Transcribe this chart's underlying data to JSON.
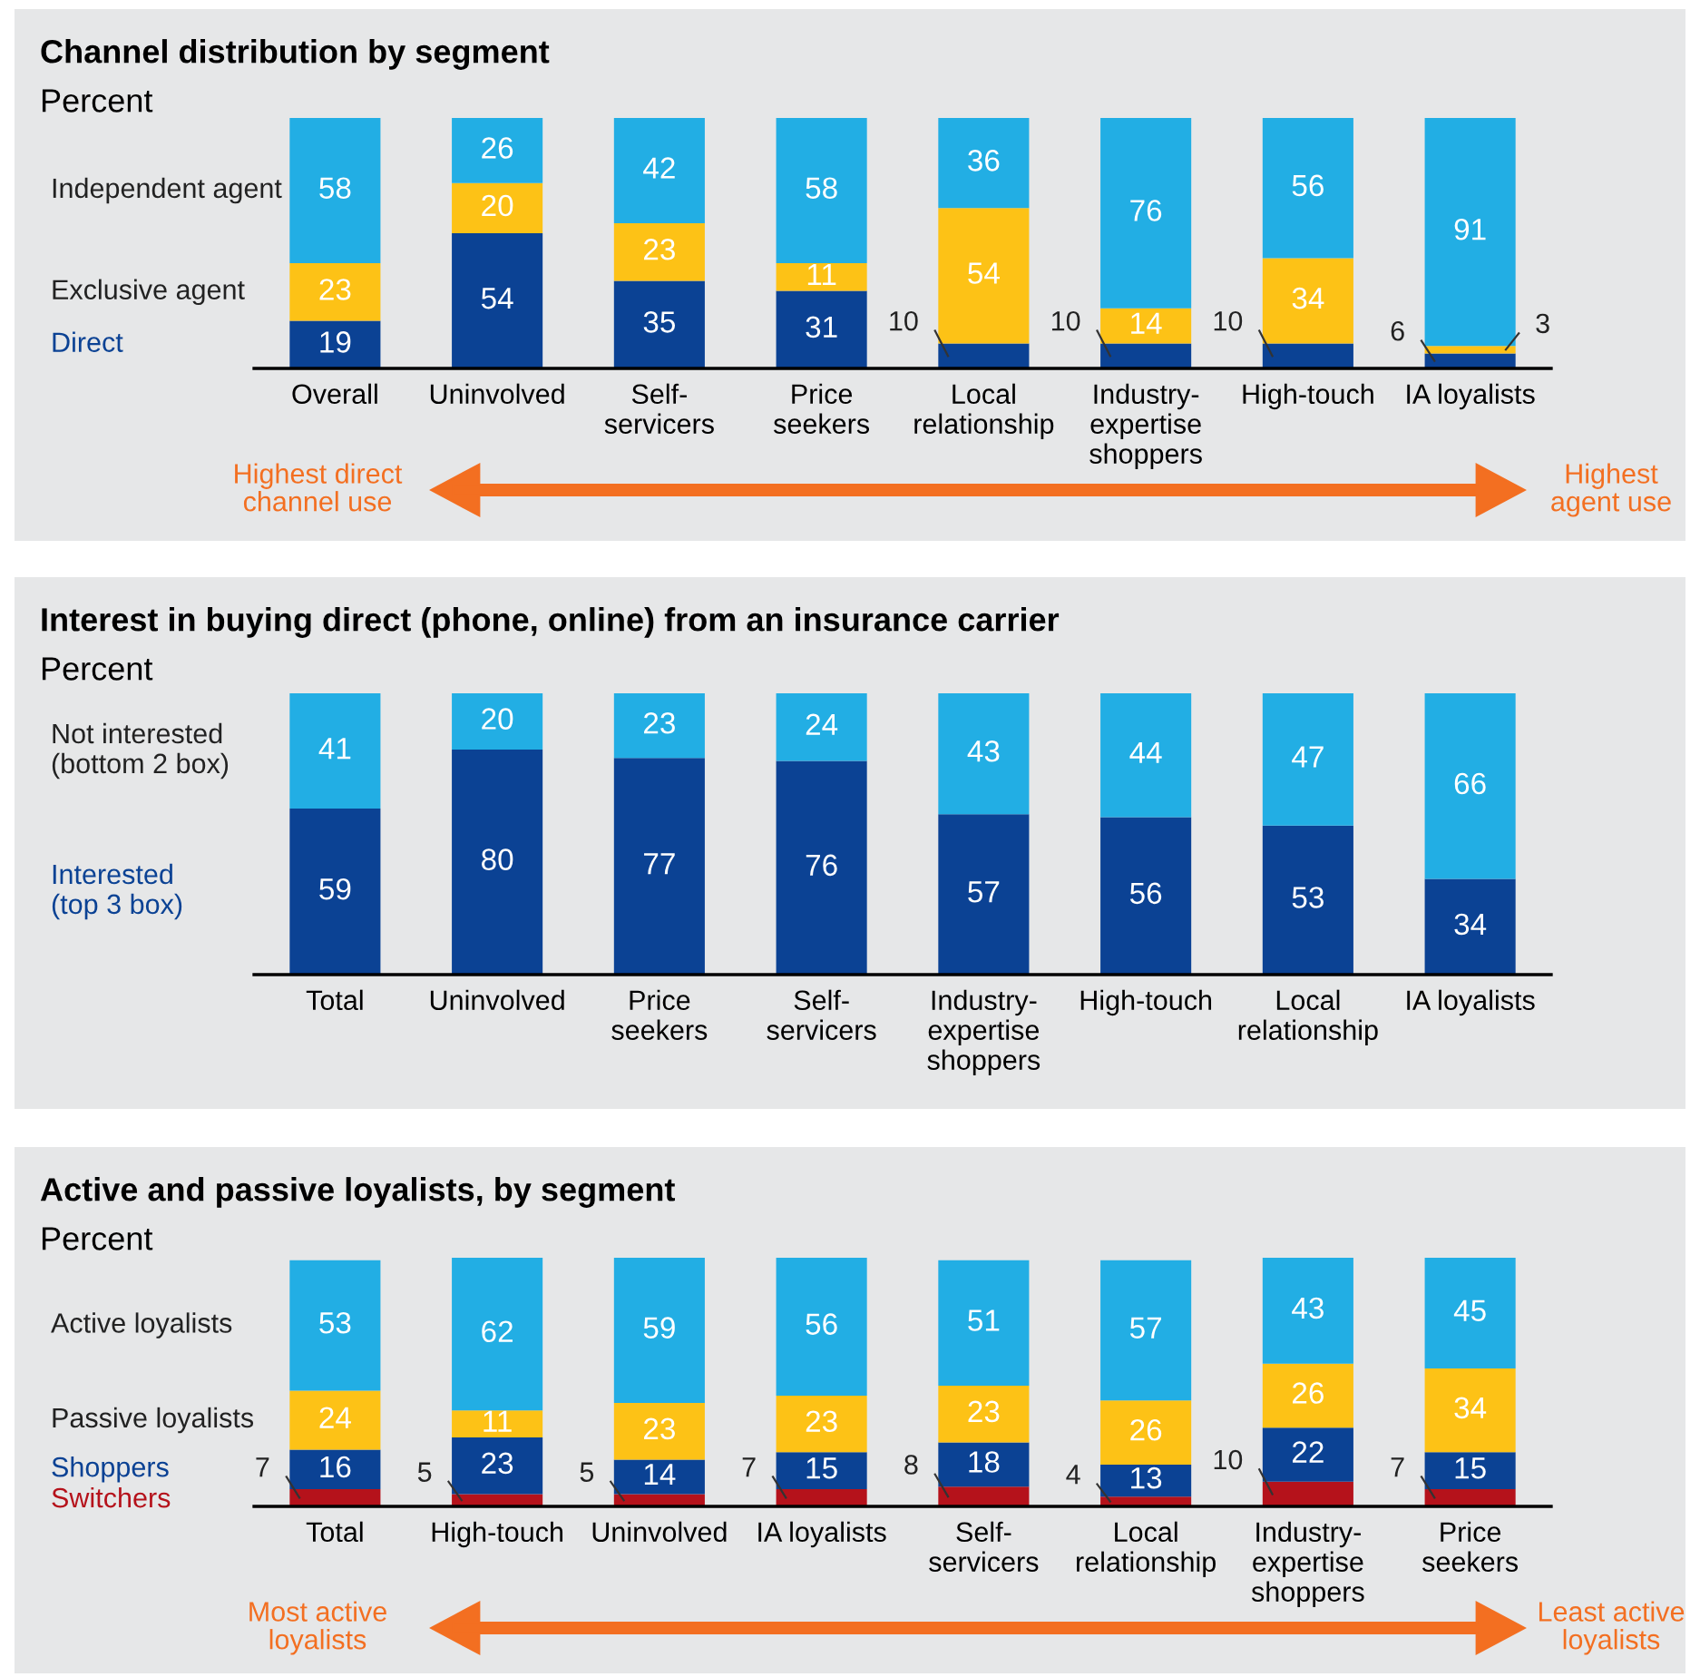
{
  "chart_data": [
    {
      "type": "bar",
      "stacked": true,
      "title": "Channel distribution by segment",
      "ylabel": "Percent",
      "ylim": [
        0,
        100
      ],
      "tick_labels": "x",
      "data_labels": true,
      "categories": [
        "Overall",
        "Uninvolved",
        "Self-\nservicers",
        "Price\nseekers",
        "Local\nrelationship",
        "Industry-\nexpertise\nshoppers",
        "High-touch",
        "IA loyalists"
      ],
      "series": [
        {
          "name": "Direct",
          "color": "#0b4294",
          "values": [
            19,
            54,
            35,
            31,
            10,
            10,
            10,
            6
          ]
        },
        {
          "name": "Exclusive agent",
          "color": "#fdc216",
          "values": [
            23,
            20,
            23,
            11,
            54,
            14,
            34,
            3
          ]
        },
        {
          "name": "Independent agent",
          "color": "#22aee4",
          "values": [
            58,
            26,
            42,
            58,
            36,
            76,
            56,
            91
          ]
        }
      ],
      "annotations": [
        "Highest direct\nchannel use",
        "Highest\nagent use"
      ]
    },
    {
      "type": "bar",
      "stacked": true,
      "title": "Interest in buying direct (phone, online) from an insurance carrier",
      "ylabel": "Percent",
      "ylim": [
        0,
        100
      ],
      "tick_labels": "x",
      "data_labels": true,
      "categories": [
        "Total",
        "Uninvolved",
        "Price\nseekers",
        "Self-\nservicers",
        "Industry-\nexpertise\nshoppers",
        "High-touch",
        "Local\nrelationship",
        "IA loyalists"
      ],
      "series": [
        {
          "name": "Interested\n(top 3 box)",
          "color": "#0b4294",
          "values": [
            59,
            80,
            77,
            76,
            57,
            56,
            53,
            34
          ]
        },
        {
          "name": "Not interested\n(bottom 2 box)",
          "color": "#22aee4",
          "values": [
            41,
            20,
            23,
            24,
            43,
            44,
            47,
            66
          ]
        }
      ]
    },
    {
      "type": "bar",
      "stacked": true,
      "title": "Active and passive loyalists, by segment",
      "ylabel": "Percent",
      "ylim": [
        0,
        101
      ],
      "tick_labels": "x",
      "data_labels": true,
      "categories": [
        "Total",
        "High-touch",
        "Uninvolved",
        "IA loyalists",
        "Self-\nservicers",
        "Local\nrelationship",
        "Industry-\nexpertise\nshoppers",
        "Price\nseekers"
      ],
      "series": [
        {
          "name": "Switchers",
          "color": "#b5121b",
          "values": [
            7,
            5,
            5,
            7,
            8,
            4,
            10,
            7
          ]
        },
        {
          "name": "Shoppers",
          "color": "#0b4294",
          "values": [
            16,
            23,
            14,
            15,
            18,
            13,
            22,
            15
          ]
        },
        {
          "name": "Passive loyalists",
          "color": "#fdc216",
          "values": [
            24,
            11,
            23,
            23,
            23,
            26,
            26,
            34
          ]
        },
        {
          "name": "Active loyalists",
          "color": "#22aee4",
          "values": [
            53,
            62,
            59,
            56,
            51,
            57,
            43,
            45
          ]
        }
      ],
      "annotations": [
        "Most active\nloyalists",
        "Least active\nloyalists"
      ]
    }
  ]
}
